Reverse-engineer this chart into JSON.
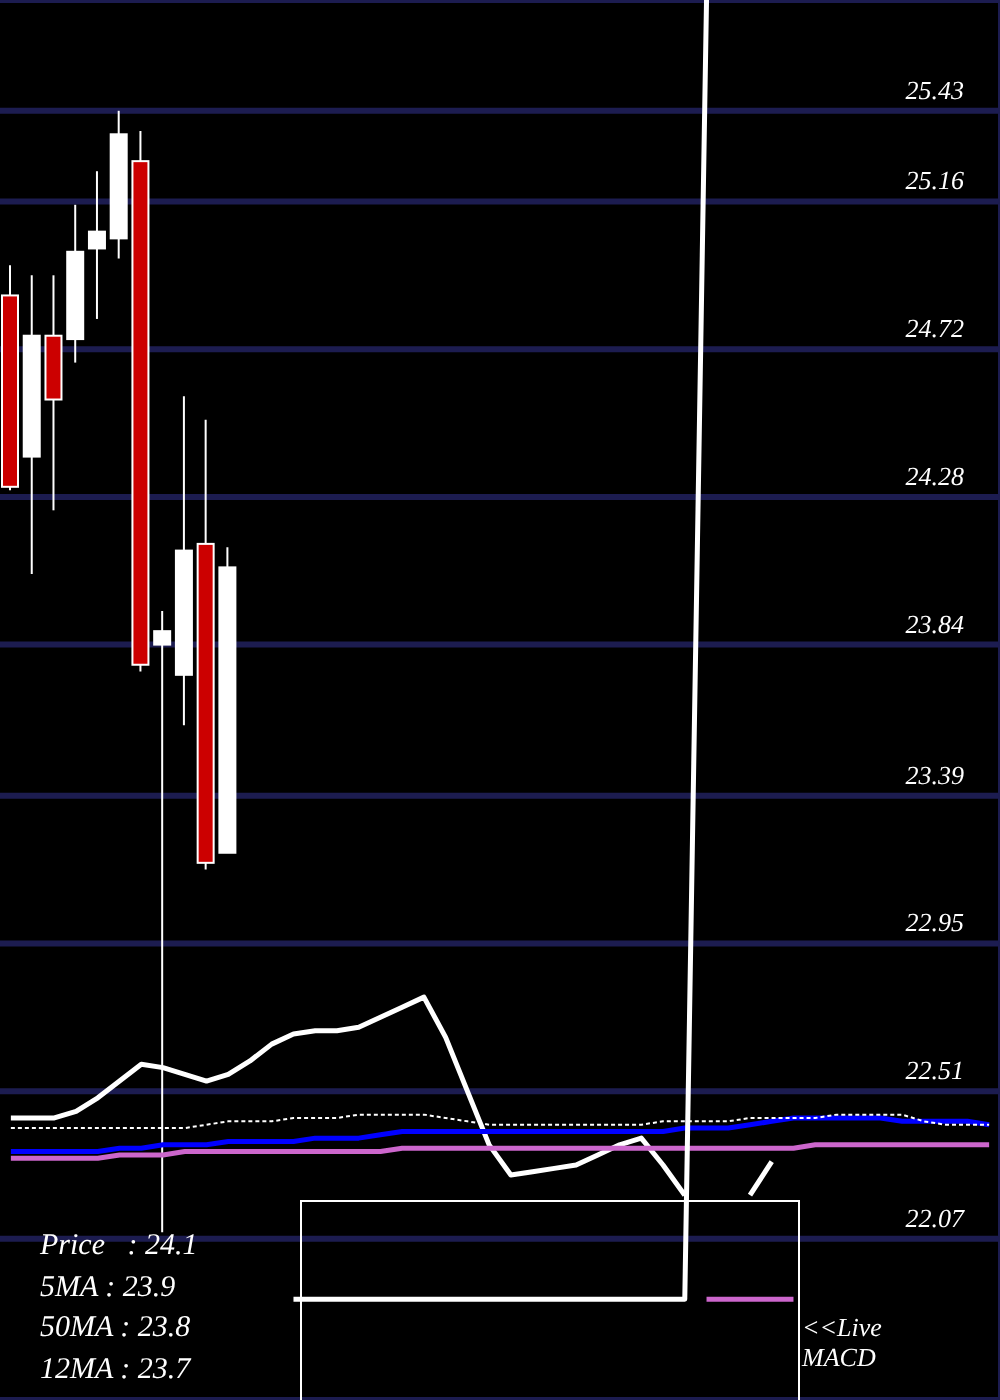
{
  "chart_data": {
    "type": "candlestick",
    "categories": [
      null,
      null,
      null,
      null,
      null,
      null,
      null,
      null,
      null,
      null,
      null,
      null,
      null,
      null,
      null,
      null,
      null,
      null,
      null,
      null,
      null,
      null,
      null,
      null,
      null,
      null,
      null,
      null,
      null,
      null,
      null,
      null,
      null,
      null,
      null,
      null,
      null,
      null,
      null,
      null,
      null,
      null,
      null,
      null,
      null,
      null
    ],
    "ohlc": [
      [
        24.88,
        24.97,
        24.3,
        24.31
      ],
      [
        24.4,
        24.94,
        24.05,
        24.76
      ],
      [
        24.76,
        24.94,
        24.24,
        24.57
      ],
      [
        24.75,
        25.15,
        24.68,
        25.01
      ],
      [
        25.02,
        25.25,
        24.81,
        25.07
      ],
      [
        25.05,
        25.43,
        24.99,
        25.36
      ],
      [
        25.28,
        25.37,
        23.76,
        23.78
      ],
      [
        23.84,
        23.94,
        22.09,
        23.88
      ],
      [
        23.75,
        24.58,
        23.6,
        24.12
      ],
      [
        24.14,
        24.51,
        23.17,
        23.19
      ],
      [
        23.22,
        24.13,
        23.22,
        24.07
      ],
      null,
      null,
      null,
      null,
      null,
      null,
      null,
      null,
      null,
      null,
      null,
      null,
      null,
      null,
      null,
      null,
      null,
      null,
      null,
      null,
      null,
      null,
      null,
      null,
      null,
      null,
      null,
      null,
      null,
      null,
      null,
      null,
      null,
      null,
      null
    ],
    "colors": [
      "#cc0000",
      "#ffffff",
      "#cc0000",
      "#ffffff",
      "#ffffff",
      "#ffffff",
      "#cc0000",
      "#ffffff",
      "#ffffff",
      "#cc0000",
      "#ffffff",
      null,
      null,
      null,
      null,
      null,
      null,
      null,
      null,
      null,
      null,
      null,
      null,
      null,
      null,
      null,
      null,
      null,
      null,
      null,
      null,
      null,
      null,
      null,
      null,
      null,
      null,
      null,
      null,
      null,
      null,
      null,
      null,
      null,
      null,
      null
    ],
    "series": [
      {
        "type": "line",
        "color": "#ffffff",
        "values": [
          22.43,
          22.43,
          22.43,
          22.45,
          22.49,
          22.54,
          22.59,
          22.58,
          22.56,
          22.54,
          22.56,
          22.6,
          22.65,
          22.68,
          22.69,
          22.69,
          22.7,
          22.73,
          22.76,
          22.79,
          22.67,
          22.51,
          22.35,
          22.26,
          22.27,
          22.28,
          22.29,
          22.32,
          22.35,
          22.37,
          22.29,
          22.2,
          null,
          null,
          22.2,
          22.3,
          null,
          null,
          null,
          null,
          null,
          null,
          null,
          null,
          null,
          null
        ]
      },
      {
        "type": "line",
        "color": "#ffffff",
        "line_style": "dotted",
        "values": [
          22.4,
          22.4,
          22.4,
          22.4,
          22.4,
          22.4,
          22.4,
          22.4,
          22.4,
          22.41,
          22.42,
          22.42,
          22.42,
          22.43,
          22.43,
          22.43,
          22.44,
          22.44,
          22.44,
          22.44,
          22.43,
          22.42,
          22.41,
          22.41,
          22.41,
          22.41,
          22.41,
          22.41,
          22.41,
          22.41,
          22.42,
          22.42,
          22.42,
          22.42,
          22.43,
          22.43,
          22.43,
          22.43,
          22.44,
          22.44,
          22.44,
          22.44,
          22.42,
          22.41,
          22.41,
          22.41
        ]
      },
      {
        "type": "line",
        "color": "#0000ff",
        "values": [
          22.33,
          22.33,
          22.33,
          22.33,
          22.33,
          22.34,
          22.34,
          22.35,
          22.35,
          22.35,
          22.36,
          22.36,
          22.36,
          22.36,
          22.37,
          22.37,
          22.37,
          22.38,
          22.39,
          22.39,
          22.39,
          22.39,
          22.39,
          22.39,
          22.39,
          22.39,
          22.39,
          22.39,
          22.39,
          22.39,
          22.39,
          22.4,
          22.4,
          22.4,
          22.41,
          22.42,
          22.43,
          22.43,
          22.43,
          22.43,
          22.43,
          22.42,
          22.42,
          22.42,
          22.42,
          22.41
        ]
      },
      {
        "type": "line",
        "color": "#cc66cc",
        "values": [
          22.31,
          22.31,
          22.31,
          22.31,
          22.31,
          22.32,
          22.32,
          22.32,
          22.33,
          22.33,
          22.33,
          22.33,
          22.33,
          22.33,
          22.33,
          22.33,
          22.33,
          22.33,
          22.34,
          22.34,
          22.34,
          22.34,
          22.34,
          22.34,
          22.34,
          22.34,
          22.34,
          22.34,
          22.34,
          22.34,
          22.34,
          22.34,
          22.34,
          22.34,
          22.34,
          22.34,
          22.34,
          22.35,
          22.35,
          22.35,
          22.35,
          22.35,
          22.35,
          22.35,
          22.35,
          22.35
        ]
      },
      {
        "type": "line",
        "color": "#ffffff",
        "values": [
          null,
          null,
          null,
          null,
          null,
          null,
          null,
          null,
          null,
          null,
          null,
          null,
          null,
          21.89,
          21.89,
          21.89,
          21.89,
          21.89,
          21.89,
          21.89,
          21.89,
          21.89,
          21.89,
          21.89,
          21.89,
          21.89,
          21.89,
          21.89,
          21.89,
          21.89,
          21.89,
          21.89,
          25.76,
          null,
          null,
          null,
          null,
          null,
          null,
          null,
          null,
          null,
          null,
          null,
          null,
          null
        ]
      },
      {
        "type": "line",
        "color": "#cc66cc",
        "values": [
          null,
          null,
          null,
          null,
          null,
          null,
          null,
          null,
          null,
          null,
          null,
          null,
          null,
          null,
          null,
          null,
          null,
          null,
          null,
          null,
          null,
          null,
          null,
          null,
          null,
          null,
          null,
          null,
          null,
          null,
          null,
          null,
          21.89,
          21.89,
          21.89,
          21.89,
          21.89,
          null,
          null,
          null,
          null,
          null,
          null,
          null,
          null,
          null
        ]
      }
    ],
    "ylim": [
      21.59,
      25.76
    ],
    "yticks": [
      22.07,
      22.51,
      22.95,
      23.39,
      23.84,
      24.28,
      24.72,
      25.16,
      25.43
    ],
    "grid": "y",
    "tick_labels": "y",
    "annotations": [
      "Price   : 24.1",
      "5MA : 23.9",
      "50MA : 23.8",
      "12MA : 23.7",
      "<<Live\nMACD"
    ]
  }
}
